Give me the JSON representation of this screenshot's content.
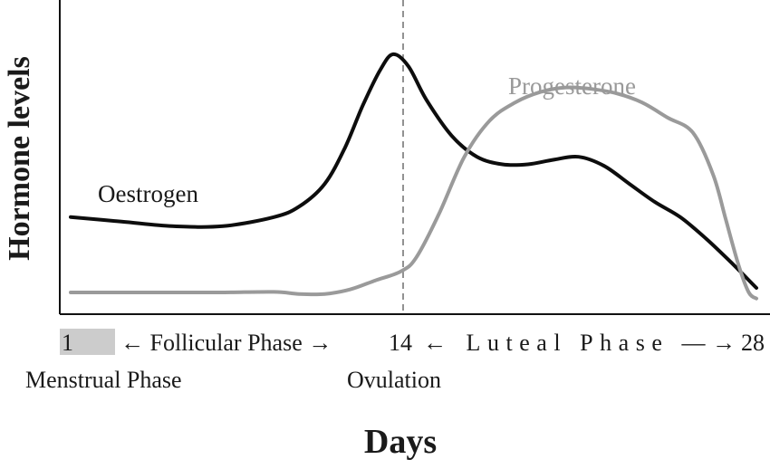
{
  "chart_data": {
    "type": "line",
    "xlabel": "Days",
    "ylabel": "Hormone levels",
    "xlim": [
      1,
      28
    ],
    "ylim": [
      0,
      100
    ],
    "grid": false,
    "series": [
      {
        "name": "Oestrogen",
        "color": "#0d0d0d",
        "points": [
          [
            1,
            31
          ],
          [
            3,
            29.5
          ],
          [
            5,
            28
          ],
          [
            7,
            28
          ],
          [
            9,
            31
          ],
          [
            10,
            34.5
          ],
          [
            11,
            42
          ],
          [
            11.8,
            54
          ],
          [
            12.5,
            68
          ],
          [
            13.2,
            80
          ],
          [
            13.7,
            85
          ],
          [
            14.3,
            81
          ],
          [
            15,
            70
          ],
          [
            16,
            58
          ],
          [
            17,
            51
          ],
          [
            18,
            48.5
          ],
          [
            19,
            48.5
          ],
          [
            20,
            50
          ],
          [
            21,
            51
          ],
          [
            22,
            48
          ],
          [
            23,
            42
          ],
          [
            24,
            36
          ],
          [
            25,
            31
          ],
          [
            26,
            24
          ],
          [
            27,
            16
          ],
          [
            28,
            7.5
          ]
        ]
      },
      {
        "name": "Progesterone",
        "color": "#9a9a9a",
        "points": [
          [
            1,
            6
          ],
          [
            3,
            6
          ],
          [
            5,
            6
          ],
          [
            7,
            6
          ],
          [
            9,
            6.2
          ],
          [
            10,
            5.5
          ],
          [
            11,
            5.5
          ],
          [
            12,
            7
          ],
          [
            13,
            10
          ],
          [
            14,
            13
          ],
          [
            14.6,
            17.5
          ],
          [
            15.5,
            32
          ],
          [
            16.5,
            51
          ],
          [
            17.5,
            63
          ],
          [
            18.5,
            69
          ],
          [
            19.5,
            72.5
          ],
          [
            20.5,
            74
          ],
          [
            21.5,
            73.5
          ],
          [
            22.5,
            72
          ],
          [
            23.5,
            69
          ],
          [
            24.5,
            64
          ],
          [
            25.5,
            59
          ],
          [
            26.3,
            45
          ],
          [
            26.8,
            30
          ],
          [
            27.3,
            15
          ],
          [
            27.7,
            6
          ],
          [
            28,
            4
          ]
        ]
      }
    ],
    "annotations": {
      "series_labels": [
        "Oestrogen",
        "Progesterone"
      ],
      "day_start": "1",
      "follicular": "← Follicular Phase →",
      "day_mid": "14",
      "luteal": "← Luteal Phase —→",
      "day_end": "28",
      "menstrual": "Menstrual Phase",
      "ovulation": "Ovulation"
    },
    "menstrual_color": "#cccccc",
    "ovulation_day": 14
  }
}
